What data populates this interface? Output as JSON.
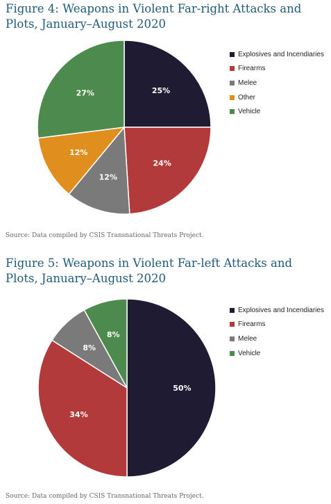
{
  "chart_data": [
    {
      "type": "pie",
      "title": "Figure 4: Weapons in Violent Far-right Attacks and Plots, January–August 2020",
      "categories": [
        "Explosives and Incendiaries",
        "Firearms",
        "Melee",
        "Other",
        "Vehicle"
      ],
      "values": [
        25,
        24,
        12,
        12,
        27
      ],
      "labels": [
        "25%",
        "24%",
        "12%",
        "12%",
        "27%"
      ],
      "colors": [
        "#1f1b33",
        "#b23a3a",
        "#7a7a7a",
        "#e08e1e",
        "#4d8a4d"
      ],
      "legend": "right",
      "source": "Source: Data compiled by CSIS Transnational Threats Project."
    },
    {
      "type": "pie",
      "title": "Figure 5: Weapons in Violent Far-left Attacks and Plots, January–August 2020",
      "categories": [
        "Explosives and Incendiaries",
        "Firearms",
        "Melee",
        "Vehicle"
      ],
      "values": [
        50,
        34,
        8,
        8
      ],
      "labels": [
        "50%",
        "34%",
        "8%",
        "8%"
      ],
      "colors": [
        "#1f1b33",
        "#b23a3a",
        "#7a7a7a",
        "#4d8a4d"
      ],
      "legend": "right",
      "source": "Source: Data compiled by CSIS Transnational Threats Project."
    }
  ]
}
